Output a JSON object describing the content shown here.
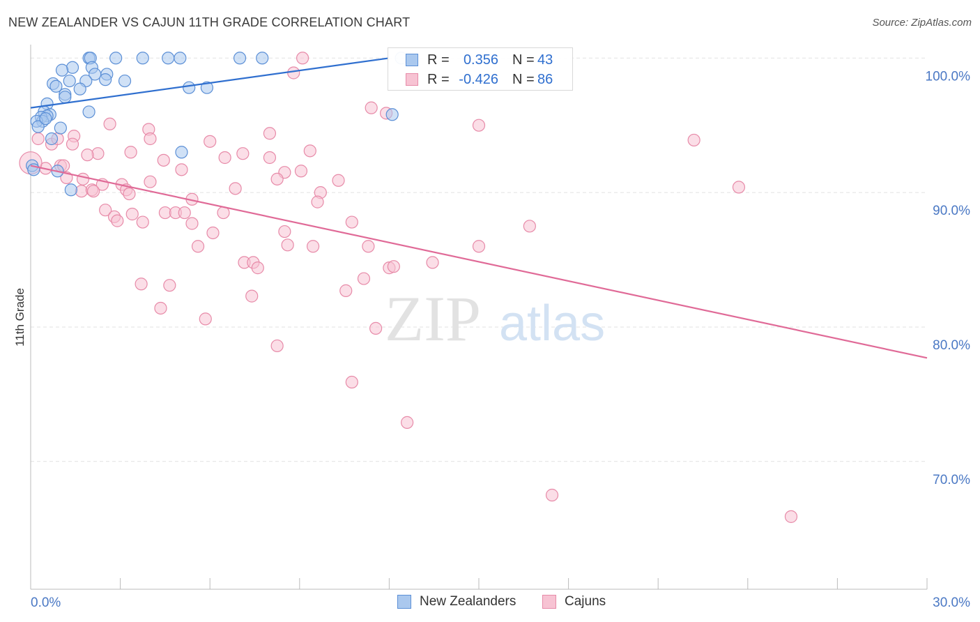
{
  "header": {
    "title": "NEW ZEALANDER VS CAJUN 11TH GRADE CORRELATION CHART",
    "source": "Source: ZipAtlas.com"
  },
  "watermark": {
    "part1": "ZIP",
    "part2": "atlas"
  },
  "stats": {
    "series1": {
      "r_label": "R =",
      "r_value": "0.356",
      "n_label": "N =",
      "n_value": "43"
    },
    "series2": {
      "r_label": "R =",
      "r_value": "-0.426",
      "n_label": "N =",
      "n_value": "86"
    }
  },
  "legend": {
    "series1": "New Zealanders",
    "series2": "Cajuns"
  },
  "colors": {
    "blue_fill": "#aac8ee",
    "blue_stroke": "#5b8fd6",
    "blue_line": "#2f6fcf",
    "pink_fill": "#f7c3d3",
    "pink_stroke": "#e78aa8",
    "pink_line": "#e06a97",
    "tick_label": "#4a78c4",
    "grid": "#e2e2e2"
  },
  "chart_data": {
    "type": "scatter",
    "title": "NEW ZEALANDER VS CAJUN 11TH GRADE CORRELATION CHART",
    "xlabel": "",
    "ylabel": "11th Grade",
    "xlim": [
      0,
      30
    ],
    "ylim": [
      60.5,
      101
    ],
    "x_tick_labels": [
      "0.0%",
      "30.0%"
    ],
    "y_ticks": [
      70,
      80,
      90,
      100
    ],
    "y_tick_labels": [
      "70.0%",
      "80.0%",
      "90.0%",
      "100.0%"
    ],
    "grid": true,
    "legend_position": "bottom-center",
    "series": [
      {
        "name": "New Zealanders",
        "color": "#aac8ee",
        "trend": {
          "x": [
            0.0,
            12.0
          ],
          "y": [
            96.3,
            100.0
          ]
        },
        "points": [
          [
            1.95,
            100.0
          ],
          [
            2.0,
            100.0
          ],
          [
            2.85,
            100.0
          ],
          [
            3.75,
            100.0
          ],
          [
            4.6,
            100.0
          ],
          [
            5.0,
            100.0
          ],
          [
            7.0,
            100.0
          ],
          [
            7.75,
            100.0
          ],
          [
            12.4,
            100.0
          ],
          [
            1.4,
            99.3
          ],
          [
            2.05,
            99.3
          ],
          [
            1.05,
            99.1
          ],
          [
            2.15,
            98.8
          ],
          [
            2.55,
            98.8
          ],
          [
            2.5,
            98.4
          ],
          [
            3.15,
            98.3
          ],
          [
            1.3,
            98.3
          ],
          [
            1.85,
            98.3
          ],
          [
            0.75,
            98.1
          ],
          [
            0.85,
            97.9
          ],
          [
            1.65,
            97.7
          ],
          [
            5.3,
            97.8
          ],
          [
            5.9,
            97.8
          ],
          [
            1.15,
            97.3
          ],
          [
            1.15,
            97.1
          ],
          [
            0.55,
            96.6
          ],
          [
            0.45,
            96.0
          ],
          [
            1.95,
            96.0
          ],
          [
            0.65,
            95.8
          ],
          [
            0.55,
            95.7
          ],
          [
            0.35,
            95.6
          ],
          [
            0.4,
            95.3
          ],
          [
            0.2,
            95.3
          ],
          [
            0.25,
            94.9
          ],
          [
            1.0,
            94.8
          ],
          [
            12.1,
            95.8
          ],
          [
            0.7,
            94.0
          ],
          [
            5.05,
            93.0
          ],
          [
            0.05,
            92.0
          ],
          [
            0.1,
            91.7
          ],
          [
            0.9,
            91.6
          ],
          [
            1.35,
            90.2
          ],
          [
            0.5,
            95.5
          ]
        ]
      },
      {
        "name": "Cajuns",
        "color": "#f7c3d3",
        "trend": {
          "x": [
            0.0,
            30.0
          ],
          "y": [
            92.0,
            77.7
          ]
        },
        "points": [
          [
            9.1,
            100.0
          ],
          [
            8.8,
            98.9
          ],
          [
            11.4,
            96.3
          ],
          [
            11.9,
            95.9
          ],
          [
            2.65,
            95.1
          ],
          [
            15.0,
            95.0
          ],
          [
            3.95,
            94.7
          ],
          [
            8.0,
            94.4
          ],
          [
            4.0,
            94.0
          ],
          [
            6.0,
            93.8
          ],
          [
            22.2,
            93.9
          ],
          [
            0.7,
            93.6
          ],
          [
            1.45,
            94.2
          ],
          [
            1.4,
            93.6
          ],
          [
            0.9,
            94.0
          ],
          [
            0.25,
            94.0
          ],
          [
            3.35,
            93.0
          ],
          [
            2.25,
            92.9
          ],
          [
            1.9,
            92.8
          ],
          [
            7.1,
            92.9
          ],
          [
            9.35,
            93.1
          ],
          [
            6.5,
            92.6
          ],
          [
            8.0,
            92.6
          ],
          [
            4.45,
            92.4
          ],
          [
            1.0,
            92.0
          ],
          [
            1.1,
            92.0
          ],
          [
            0.5,
            91.8
          ],
          [
            5.05,
            91.7
          ],
          [
            8.5,
            91.5
          ],
          [
            9.05,
            91.6
          ],
          [
            8.25,
            91.0
          ],
          [
            1.75,
            91.0
          ],
          [
            1.2,
            91.1
          ],
          [
            10.3,
            90.9
          ],
          [
            4.0,
            90.8
          ],
          [
            2.4,
            90.6
          ],
          [
            3.05,
            90.6
          ],
          [
            23.7,
            90.4
          ],
          [
            3.2,
            90.2
          ],
          [
            6.85,
            90.3
          ],
          [
            9.7,
            90.0
          ],
          [
            1.7,
            90.1
          ],
          [
            2.05,
            90.2
          ],
          [
            2.1,
            90.1
          ],
          [
            3.3,
            89.9
          ],
          [
            5.4,
            89.5
          ],
          [
            9.6,
            89.3
          ],
          [
            2.5,
            88.7
          ],
          [
            4.5,
            88.5
          ],
          [
            4.85,
            88.5
          ],
          [
            5.15,
            88.5
          ],
          [
            3.4,
            88.4
          ],
          [
            6.45,
            88.5
          ],
          [
            2.8,
            88.2
          ],
          [
            2.9,
            87.9
          ],
          [
            3.75,
            87.8
          ],
          [
            5.4,
            87.7
          ],
          [
            10.75,
            87.8
          ],
          [
            16.7,
            87.5
          ],
          [
            8.5,
            87.1
          ],
          [
            6.1,
            87.0
          ],
          [
            5.6,
            86.0
          ],
          [
            8.6,
            86.1
          ],
          [
            9.45,
            86.0
          ],
          [
            15.0,
            86.0
          ],
          [
            11.3,
            86.0
          ],
          [
            7.15,
            84.8
          ],
          [
            7.45,
            84.8
          ],
          [
            7.6,
            84.4
          ],
          [
            12.0,
            84.4
          ],
          [
            12.15,
            84.5
          ],
          [
            13.45,
            84.8
          ],
          [
            11.15,
            83.6
          ],
          [
            3.7,
            83.2
          ],
          [
            4.65,
            83.1
          ],
          [
            10.55,
            82.7
          ],
          [
            7.4,
            82.3
          ],
          [
            4.35,
            81.4
          ],
          [
            5.85,
            80.6
          ],
          [
            11.55,
            79.9
          ],
          [
            8.25,
            78.6
          ],
          [
            10.75,
            75.9
          ],
          [
            12.6,
            72.9
          ],
          [
            17.45,
            67.5
          ],
          [
            25.45,
            65.9
          ],
          [
            0.0,
            92.2
          ]
        ]
      }
    ]
  }
}
